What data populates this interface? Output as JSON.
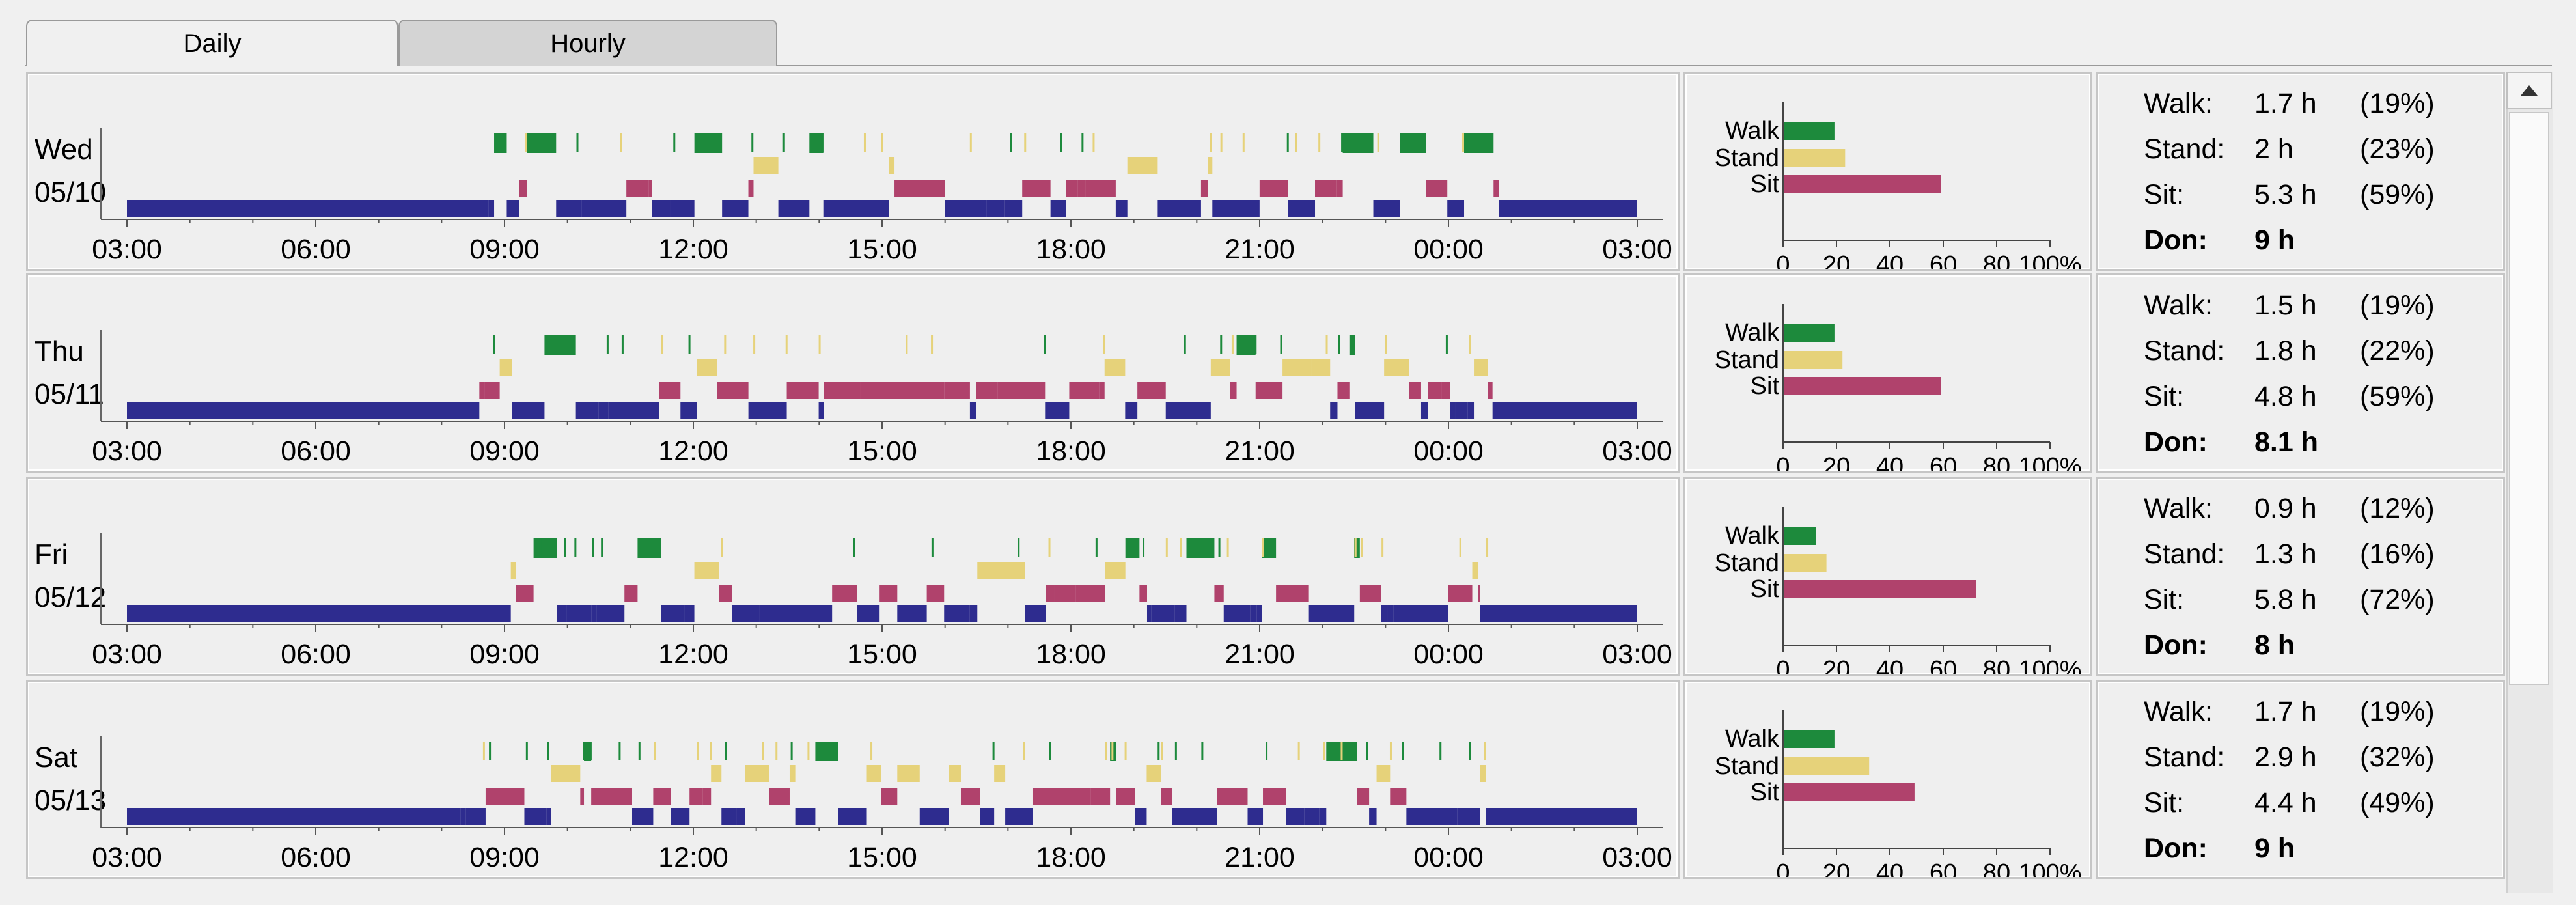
{
  "tabs": [
    {
      "label": "Daily",
      "active": true
    },
    {
      "label": "Hourly",
      "active": false
    }
  ],
  "time_axis": [
    "03:00",
    "06:00",
    "09:00",
    "12:00",
    "15:00",
    "18:00",
    "21:00",
    "00:00",
    "03:00"
  ],
  "bar_axis": [
    "0",
    "20",
    "40",
    "60",
    "80",
    "100%"
  ],
  "activity_labels": {
    "walk": "Walk",
    "stand": "Stand",
    "sit": "Sit"
  },
  "colors": {
    "walk": "#1d8a3c",
    "stand": "#e6d27a",
    "sit": "#b0426c",
    "lying": "#2e2c8f"
  },
  "icons": {
    "scroll_up": "triangle-up-icon"
  },
  "days": [
    {
      "weekday": "Wed",
      "date": "05/10",
      "percent": {
        "walk": 19,
        "stand": 23,
        "sit": 59
      },
      "stats": {
        "walk_label": "Walk:",
        "walk_hours": "1.7 h",
        "walk_pct": "(19%)",
        "stand_label": "Stand:",
        "stand_hours": "2 h",
        "stand_pct": "(23%)",
        "sit_label": "Sit:",
        "sit_hours": "5.3 h",
        "sit_pct": "(59%)",
        "don_label": "Don:",
        "don_hours": "9 h"
      }
    },
    {
      "weekday": "Thu",
      "date": "05/11",
      "percent": {
        "walk": 19,
        "stand": 22,
        "sit": 59
      },
      "stats": {
        "walk_label": "Walk:",
        "walk_hours": "1.5 h",
        "walk_pct": "(19%)",
        "stand_label": "Stand:",
        "stand_hours": "1.8 h",
        "stand_pct": "(22%)",
        "sit_label": "Sit:",
        "sit_hours": "4.8 h",
        "sit_pct": "(59%)",
        "don_label": "Don:",
        "don_hours": "8.1 h"
      }
    },
    {
      "weekday": "Fri",
      "date": "05/12",
      "percent": {
        "walk": 12,
        "stand": 16,
        "sit": 72
      },
      "stats": {
        "walk_label": "Walk:",
        "walk_hours": "0.9 h",
        "walk_pct": "(12%)",
        "stand_label": "Stand:",
        "stand_hours": "1.3 h",
        "stand_pct": "(16%)",
        "sit_label": "Sit:",
        "sit_hours": "5.8 h",
        "sit_pct": "(72%)",
        "don_label": "Don:",
        "don_hours": "8 h"
      }
    },
    {
      "weekday": "Sat",
      "date": "05/13",
      "percent": {
        "walk": 19,
        "stand": 32,
        "sit": 49
      },
      "stats": {
        "walk_label": "Walk:",
        "walk_hours": "1.7 h",
        "walk_pct": "(19%)",
        "stand_label": "Stand:",
        "stand_hours": "2.9 h",
        "stand_pct": "(32%)",
        "sit_label": "Sit:",
        "sit_hours": "4.4 h",
        "sit_pct": "(49%)",
        "don_label": "Don:",
        "don_hours": "9 h"
      }
    }
  ]
}
